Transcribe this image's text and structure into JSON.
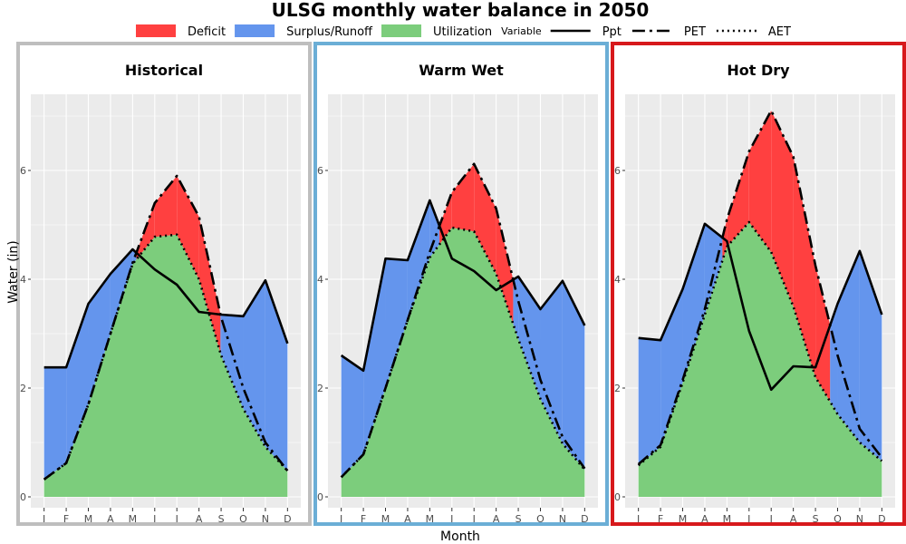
{
  "chart_data": {
    "type": "area",
    "title": "ULSG monthly water balance in 2050",
    "xlabel": "Month",
    "ylabel": "Water (in)",
    "ylim": [
      -0.2,
      7.4
    ],
    "yticks": [
      0,
      2,
      4,
      6
    ],
    "categories": [
      "J",
      "F",
      "M",
      "A",
      "M",
      "J",
      "J",
      "A",
      "S",
      "O",
      "N",
      "D"
    ],
    "legend_fill": [
      {
        "label": "Deficit",
        "color": "#ff4040"
      },
      {
        "label": "Surplus/Runoff",
        "color": "#6495ed"
      },
      {
        "label": "Utilization",
        "color": "#7ccd7c"
      }
    ],
    "legend_variable_title": "Variable",
    "legend_lines": [
      {
        "label": "Ppt",
        "style": "solid"
      },
      {
        "label": "PET",
        "style": "dashed"
      },
      {
        "label": "AET",
        "style": "dotted"
      }
    ],
    "legend_placement": "top",
    "grid": true,
    "colors": {
      "deficit": "#ff4040",
      "surplus": "#6495ed",
      "utilization": "#7ccd7c",
      "panel_bg": "#ebebeb",
      "grid": "#ffffff"
    },
    "panels": [
      {
        "name": "Historical",
        "border_color": "#bebebe",
        "series": [
          {
            "name": "Ppt",
            "values": [
              2.38,
              2.38,
              3.55,
              4.1,
              4.55,
              4.18,
              3.9,
              3.4,
              3.35,
              3.32,
              3.98,
              2.82
            ]
          },
          {
            "name": "PET",
            "values": [
              0.32,
              0.62,
              1.7,
              3.0,
              4.3,
              5.4,
              5.9,
              5.15,
              3.3,
              2.0,
              1.0,
              0.48
            ]
          },
          {
            "name": "AET",
            "values": [
              0.32,
              0.62,
              1.7,
              3.0,
              4.28,
              4.78,
              4.82,
              4.0,
              2.6,
              1.62,
              0.92,
              0.48
            ]
          }
        ]
      },
      {
        "name": "Warm Wet",
        "border_color": "#6baed6",
        "series": [
          {
            "name": "Ppt",
            "values": [
              2.6,
              2.32,
              4.38,
              4.35,
              5.45,
              4.38,
              4.15,
              3.8,
              4.05,
              3.45,
              3.97,
              3.15
            ]
          },
          {
            "name": "PET",
            "values": [
              0.36,
              0.78,
              2.0,
              3.25,
              4.5,
              5.6,
              6.12,
              5.3,
              3.6,
              2.15,
              1.1,
              0.52
            ]
          },
          {
            "name": "AET",
            "values": [
              0.36,
              0.78,
              2.0,
              3.25,
              4.4,
              4.95,
              4.88,
              4.1,
              2.9,
              1.8,
              0.98,
              0.5
            ]
          }
        ]
      },
      {
        "name": "Hot Dry",
        "border_color": "#d7191c",
        "series": [
          {
            "name": "Ppt",
            "values": [
              2.92,
              2.88,
              3.82,
              5.02,
              4.7,
              3.05,
              1.97,
              2.4,
              2.38,
              3.55,
              4.52,
              3.35
            ]
          },
          {
            "name": "PET",
            "values": [
              0.6,
              0.95,
              2.15,
              3.45,
              5.1,
              6.35,
              7.1,
              6.25,
              4.25,
              2.6,
              1.25,
              0.72
            ]
          },
          {
            "name": "AET",
            "values": [
              0.58,
              0.92,
              2.1,
              3.35,
              4.6,
              5.05,
              4.5,
              3.5,
              2.2,
              1.52,
              1.0,
              0.66
            ]
          }
        ]
      }
    ]
  }
}
